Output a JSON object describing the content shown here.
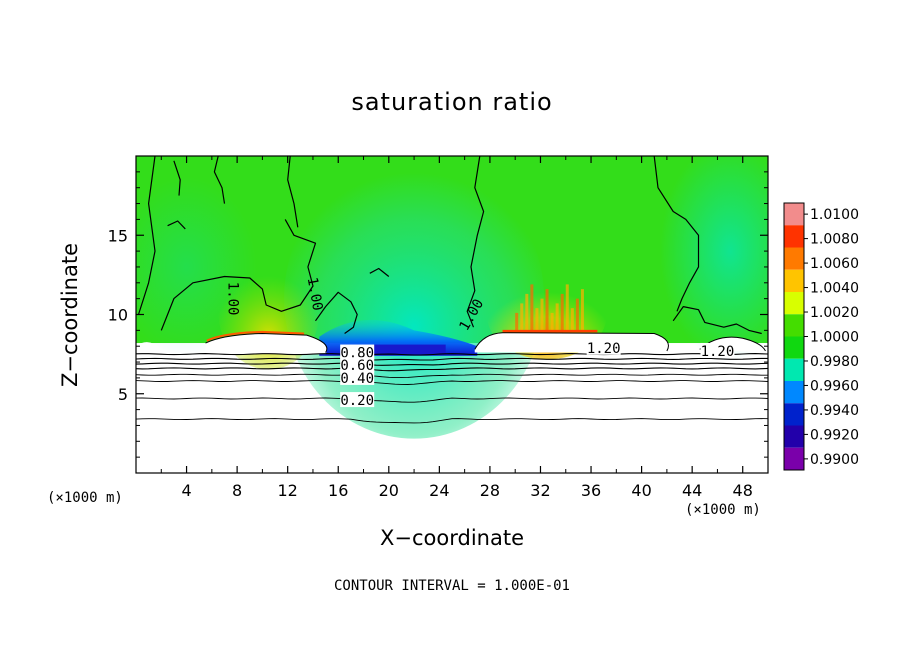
{
  "chart_data": {
    "type": "heatmap",
    "title": "saturation ratio",
    "xlabel": "X−coordinate",
    "ylabel": "Z−coordinate",
    "x_unit_label": "(×1000 m)",
    "xlim": [
      0,
      50
    ],
    "ylim": [
      0,
      20
    ],
    "x_ticks": [
      4,
      8,
      12,
      16,
      20,
      24,
      28,
      32,
      36,
      40,
      44,
      48
    ],
    "y_ticks": [
      5,
      10,
      15
    ],
    "colorbar": {
      "levels": [
        "1.0100",
        "1.0080",
        "1.0060",
        "1.0040",
        "1.0020",
        "1.0000",
        "0.9980",
        "0.9960",
        "0.9940",
        "0.9920",
        "0.9900"
      ],
      "colors": [
        "#f28c8c",
        "#ff3300",
        "#ff7a00",
        "#ffc400",
        "#d8ff00",
        "#44dd00",
        "#10d810",
        "#00e8b0",
        "#0088ff",
        "#0022cc",
        "#2200aa",
        "#7a00aa"
      ]
    },
    "contour_labels": [
      {
        "text": "1.00",
        "x": 7.7,
        "z": 11.0,
        "rotate": 90
      },
      {
        "text": "1.00",
        "x": 14.2,
        "z": 11.3,
        "rotate": 80
      },
      {
        "text": "1.00",
        "x": 26.5,
        "z": 10.0,
        "rotate": -60
      },
      {
        "text": "1.20",
        "x": 37.0,
        "z": 7.9,
        "rotate": 0
      },
      {
        "text": "1.20",
        "x": 46.0,
        "z": 7.7,
        "rotate": 0
      },
      {
        "text": "0.80",
        "x": 17.5,
        "z": 7.6,
        "rotate": 0
      },
      {
        "text": "0.60",
        "x": 17.5,
        "z": 6.8,
        "rotate": 0
      },
      {
        "text": "0.40",
        "x": 17.5,
        "z": 6.0,
        "rotate": 0
      },
      {
        "text": "0.20",
        "x": 17.5,
        "z": 4.6,
        "rotate": 0
      }
    ],
    "stratified_contours_z": [
      3.4,
      4.7,
      5.8,
      6.2,
      6.6,
      6.9,
      7.2,
      7.5
    ],
    "contour_interval_text": "CONTOUR INTERVAL =  1.000E-01"
  }
}
